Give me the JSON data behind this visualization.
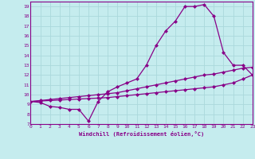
{
  "line1": {
    "x": [
      0,
      1,
      2,
      3,
      4,
      5,
      6,
      7,
      8,
      9,
      10,
      11,
      12,
      13,
      14,
      15,
      16,
      17,
      18,
      19,
      20,
      21,
      22,
      23
    ],
    "y": [
      9.3,
      9.2,
      8.8,
      8.7,
      8.5,
      8.5,
      7.3,
      9.3,
      10.3,
      10.8,
      11.2,
      11.6,
      13.0,
      15.0,
      16.5,
      17.5,
      19.0,
      19.0,
      19.2,
      18.0,
      14.3,
      13.0,
      13.0,
      12.0
    ]
  },
  "line2": {
    "x": [
      0,
      1,
      2,
      3,
      4,
      5,
      6,
      7,
      8,
      9,
      10,
      11,
      12,
      13,
      14,
      15,
      16,
      17,
      18,
      19,
      20,
      21,
      22,
      23
    ],
    "y": [
      9.3,
      9.4,
      9.5,
      9.6,
      9.7,
      9.8,
      9.9,
      10.0,
      10.1,
      10.2,
      10.4,
      10.6,
      10.8,
      11.0,
      11.2,
      11.4,
      11.6,
      11.8,
      12.0,
      12.1,
      12.3,
      12.5,
      12.7,
      12.8
    ]
  },
  "line3": {
    "x": [
      0,
      1,
      2,
      3,
      4,
      5,
      6,
      7,
      8,
      9,
      10,
      11,
      12,
      13,
      14,
      15,
      16,
      17,
      18,
      19,
      20,
      21,
      22,
      23
    ],
    "y": [
      9.3,
      9.35,
      9.4,
      9.45,
      9.5,
      9.55,
      9.6,
      9.65,
      9.7,
      9.8,
      9.9,
      10.0,
      10.1,
      10.2,
      10.3,
      10.4,
      10.5,
      10.6,
      10.7,
      10.8,
      11.0,
      11.2,
      11.6,
      12.0
    ]
  },
  "xlabel": "Windchill (Refroidissement éolien,°C)",
  "xlim": [
    0,
    23
  ],
  "ylim": [
    7,
    19.5
  ],
  "xticks": [
    0,
    1,
    2,
    3,
    4,
    5,
    6,
    7,
    8,
    9,
    10,
    11,
    12,
    13,
    14,
    15,
    16,
    17,
    18,
    19,
    20,
    21,
    22,
    23
  ],
  "yticks": [
    7,
    8,
    9,
    10,
    11,
    12,
    13,
    14,
    15,
    16,
    17,
    18,
    19
  ],
  "bg_color": "#c5ecee",
  "line_color": "#880088",
  "grid_color": "#aad8dc",
  "spine_color": "#880088"
}
